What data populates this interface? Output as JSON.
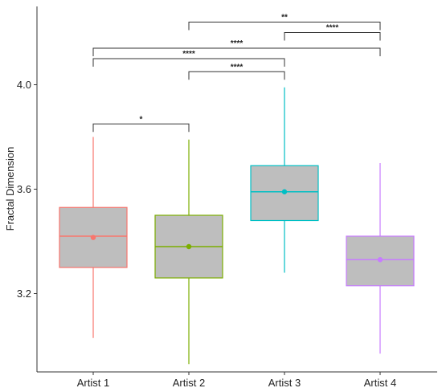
{
  "chart_data": {
    "type": "box",
    "title": "",
    "xlabel": "",
    "ylabel": "Fractal Dimension",
    "ylim": [
      2.9,
      4.3
    ],
    "yticks": [
      "3.2",
      "3.6",
      "4.0"
    ],
    "grid": false,
    "categories": [
      "Artist 1",
      "Artist 2",
      "Artist 3",
      "Artist 4"
    ],
    "colors": [
      "#f8766d",
      "#7cae00",
      "#00bfc4",
      "#c77cff"
    ],
    "box_fill": "#bebebe",
    "boxes": [
      {
        "min": 3.03,
        "q1": 3.3,
        "median": 3.42,
        "q3": 3.53,
        "max": 3.8,
        "mean": 3.415
      },
      {
        "min": 2.93,
        "q1": 3.26,
        "median": 3.38,
        "q3": 3.5,
        "max": 3.79,
        "mean": 3.38
      },
      {
        "min": 3.28,
        "q1": 3.48,
        "median": 3.59,
        "q3": 3.69,
        "max": 3.99,
        "mean": 3.59
      },
      {
        "min": 2.97,
        "q1": 3.23,
        "median": 3.33,
        "q3": 3.42,
        "max": 3.7,
        "mean": 3.33
      }
    ],
    "significance": [
      {
        "from": 0,
        "to": 1,
        "label": "*",
        "level": 3.85
      },
      {
        "from": 1,
        "to": 2,
        "label": "****",
        "level": 4.05
      },
      {
        "from": 0,
        "to": 2,
        "label": "****",
        "level": 4.1
      },
      {
        "from": 0,
        "to": 3,
        "label": "****",
        "level": 4.14
      },
      {
        "from": 2,
        "to": 3,
        "label": "****",
        "level": 4.2
      },
      {
        "from": 1,
        "to": 3,
        "label": "**",
        "level": 4.24
      }
    ]
  }
}
